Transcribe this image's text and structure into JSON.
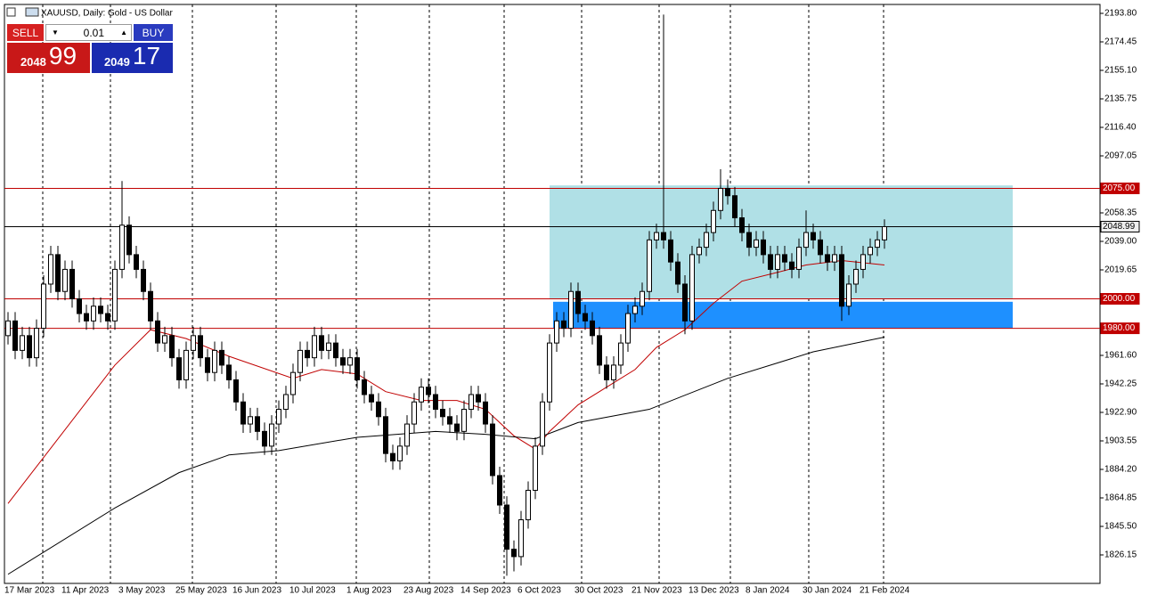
{
  "chart_data": {
    "type": "candlestick",
    "title": "XAUUSD, Daily: Gold - US Dollar",
    "trade_panel": {
      "sell": "SELL",
      "lot": "0.01",
      "buy": "BUY",
      "bid_big": "2048",
      "bid_small": "99",
      "ask_big": "2049",
      "ask_small": "17"
    },
    "categories": [
      "17 Mar 2023",
      null,
      null,
      null,
      null,
      null,
      null,
      null,
      "11 Apr 2023",
      null,
      null,
      null,
      null,
      null,
      null,
      null,
      "3 May 2023",
      null,
      null,
      null,
      null,
      null,
      null,
      null,
      "25 May 2023",
      null,
      null,
      null,
      null,
      null,
      null,
      null,
      "16 Jun 2023",
      null,
      null,
      null,
      null,
      null,
      null,
      null,
      "10 Jul 2023",
      null,
      null,
      null,
      null,
      null,
      null,
      null,
      "1 Aug 2023",
      null,
      null,
      null,
      null,
      null,
      null,
      null,
      "23 Aug 2023",
      null,
      null,
      null,
      null,
      null,
      null,
      null,
      "14 Sep 2023",
      null,
      null,
      null,
      null,
      null,
      null,
      null,
      "6 Oct 2023",
      null,
      null,
      null,
      null,
      null,
      null,
      null,
      "30 Oct 2023",
      null,
      null,
      null,
      null,
      null,
      null,
      null,
      "21 Nov 2023",
      null,
      null,
      null,
      null,
      null,
      null,
      null,
      "13 Dec 2023",
      null,
      null,
      null,
      null,
      null,
      null,
      null,
      "8 Jan 2024",
      null,
      null,
      null,
      null,
      null,
      null,
      null,
      "30 Jan 2024",
      null,
      null,
      null,
      null,
      null,
      null,
      null,
      "21 Feb 2024",
      null,
      null,
      null
    ],
    "open": [
      1975,
      1985,
      1965,
      1975,
      1960,
      1980,
      2010,
      2030,
      2005,
      2020,
      2000,
      1990,
      1985,
      1995,
      1990,
      1985,
      2020,
      2050,
      2030,
      2020,
      2005,
      1985,
      1970,
      1975,
      1960,
      1945,
      1965,
      1975,
      1960,
      1950,
      1965,
      1955,
      1945,
      1930,
      1915,
      1920,
      1910,
      1900,
      1915,
      1925,
      1935,
      1950,
      1965,
      1960,
      1975,
      1965,
      1970,
      1960,
      1955,
      1960,
      1945,
      1935,
      1930,
      1920,
      1895,
      1890,
      1900,
      1915,
      1930,
      1940,
      1935,
      1925,
      1920,
      1915,
      1910,
      1925,
      1935,
      1930,
      1915,
      1880,
      1860,
      1830,
      1825,
      1850,
      1870,
      1900,
      1930,
      1970,
      1985,
      1980,
      2005,
      1990,
      1985,
      1975,
      1955,
      1945,
      1955,
      1970,
      1990,
      1995,
      2005,
      2040,
      2045,
      2040,
      2025,
      2010,
      1985,
      2030,
      2035,
      2045,
      2060,
      2075,
      2070,
      2055,
      2045,
      2035,
      2040,
      2030,
      2020,
      2030,
      2025,
      2020,
      2035,
      2045,
      2040,
      2030,
      2025,
      2030,
      1995,
      2010,
      2020,
      2030,
      2035,
      2040
    ],
    "high": [
      1991,
      1991,
      1981,
      1981,
      1986,
      2016,
      2036,
      2036,
      2026,
      2026,
      2006,
      1996,
      2001,
      2001,
      1996,
      2026,
      2080,
      2056,
      2036,
      2026,
      2011,
      1991,
      1981,
      1981,
      1966,
      1971,
      1981,
      1981,
      1966,
      1971,
      1971,
      1961,
      1951,
      1936,
      1926,
      1926,
      1916,
      1921,
      1931,
      1941,
      1956,
      1971,
      1971,
      1981,
      1981,
      1976,
      1976,
      1966,
      1966,
      1966,
      1951,
      1941,
      1936,
      1926,
      1901,
      1906,
      1921,
      1936,
      1946,
      1946,
      1941,
      1931,
      1926,
      1921,
      1931,
      1941,
      1941,
      1936,
      1921,
      1886,
      1866,
      1836,
      1856,
      1876,
      1906,
      1936,
      1976,
      1991,
      1991,
      2011,
      2011,
      1996,
      1991,
      1981,
      1961,
      1961,
      1976,
      1996,
      2001,
      2011,
      2046,
      2051,
      2193,
      2046,
      2031,
      2016,
      2036,
      2041,
      2051,
      2066,
      2088,
      2081,
      2076,
      2061,
      2051,
      2046,
      2046,
      2036,
      2036,
      2036,
      2031,
      2041,
      2060,
      2051,
      2046,
      2036,
      2036,
      2036,
      2016,
      2026,
      2036,
      2041,
      2046,
      2054
    ],
    "low": [
      1969,
      1959,
      1959,
      1954,
      1954,
      1974,
      2004,
      1999,
      1999,
      1994,
      1984,
      1979,
      1979,
      1984,
      1979,
      1979,
      2014,
      2024,
      2014,
      1999,
      1979,
      1964,
      1964,
      1954,
      1939,
      1939,
      1959,
      1954,
      1944,
      1944,
      1949,
      1939,
      1924,
      1909,
      1909,
      1904,
      1894,
      1894,
      1909,
      1919,
      1929,
      1944,
      1954,
      1954,
      1959,
      1959,
      1954,
      1949,
      1949,
      1939,
      1929,
      1924,
      1914,
      1889,
      1884,
      1884,
      1894,
      1909,
      1924,
      1929,
      1919,
      1914,
      1909,
      1904,
      1904,
      1919,
      1924,
      1909,
      1874,
      1854,
      1812,
      1815,
      1819,
      1844,
      1864,
      1894,
      1924,
      1964,
      1974,
      1974,
      1984,
      1979,
      1969,
      1949,
      1939,
      1939,
      1949,
      1964,
      1984,
      1989,
      1999,
      2034,
      2034,
      2019,
      2004,
      1976,
      1979,
      2024,
      2029,
      2039,
      2054,
      2064,
      2049,
      2039,
      2029,
      2029,
      2024,
      2014,
      2014,
      2019,
      2014,
      2014,
      2029,
      2034,
      2024,
      2019,
      2019,
      1985,
      1989,
      2004,
      2014,
      2024,
      2029,
      2034
    ],
    "close": [
      1985,
      1965,
      1975,
      1960,
      1980,
      2010,
      2030,
      2005,
      2020,
      2000,
      1990,
      1985,
      1995,
      1990,
      1985,
      2020,
      2050,
      2030,
      2020,
      2005,
      1985,
      1970,
      1975,
      1960,
      1945,
      1965,
      1975,
      1960,
      1950,
      1965,
      1955,
      1945,
      1930,
      1915,
      1920,
      1910,
      1900,
      1915,
      1925,
      1935,
      1950,
      1965,
      1960,
      1975,
      1965,
      1970,
      1960,
      1955,
      1960,
      1945,
      1935,
      1930,
      1920,
      1895,
      1890,
      1900,
      1915,
      1930,
      1940,
      1935,
      1925,
      1920,
      1915,
      1910,
      1925,
      1935,
      1930,
      1915,
      1880,
      1860,
      1830,
      1825,
      1850,
      1870,
      1900,
      1930,
      1970,
      1985,
      1980,
      2005,
      1990,
      1985,
      1975,
      1955,
      1945,
      1955,
      1970,
      1990,
      1995,
      2005,
      2040,
      2045,
      2040,
      2025,
      2010,
      1985,
      2030,
      2035,
      2045,
      2060,
      2075,
      2070,
      2055,
      2045,
      2035,
      2040,
      2030,
      2020,
      2030,
      2025,
      2020,
      2035,
      2045,
      2040,
      2030,
      2025,
      2030,
      1995,
      2010,
      2020,
      2030,
      2035,
      2040,
      2048.99
    ],
    "overlays": [
      {
        "color": "#c00000",
        "x": [
          0,
          15,
          20,
          25,
          31,
          40,
          44,
          49,
          53,
          58,
          63,
          67,
          71,
          74,
          76,
          80,
          84,
          88,
          91,
          95,
          99,
          103,
          108,
          112,
          117,
          123
        ],
        "values": [
          1861,
          1955,
          1979,
          1973,
          1961,
          1946,
          1952,
          1949,
          1937,
          1931,
          1931,
          1925,
          1907,
          1898,
          1910,
          1928,
          1940,
          1952,
          1967,
          1979,
          1997,
          2012,
          2018,
          2023,
          2026,
          2023
        ]
      },
      {
        "color": "#000000",
        "x": [
          0,
          15,
          24,
          31,
          38,
          49,
          60,
          67,
          74,
          80,
          90,
          101,
          113,
          123
        ],
        "values": [
          1813,
          1858,
          1882,
          1894,
          1897,
          1906,
          1910,
          1908,
          1905,
          1916,
          1925,
          1946,
          1964,
          1974
        ]
      }
    ],
    "zones": [
      {
        "from": 2000,
        "to": 2077,
        "x": [
          76,
          141
        ],
        "color": "#b0e0e6"
      },
      {
        "from": 1980,
        "to": 1998,
        "x": [
          76.5,
          141
        ],
        "color": "#1e90ff"
      }
    ],
    "levels": [
      {
        "value": 2075,
        "label": "2075.00",
        "color": "#c00000"
      },
      {
        "value": 2000,
        "label": "2000.00",
        "color": "#c00000"
      },
      {
        "value": 1980,
        "label": "1980.00",
        "color": "#c00000"
      }
    ],
    "current": {
      "value": 2048.99,
      "label": "2048.99",
      "color": "#000000"
    },
    "xlim": [
      -0.5,
      153.25
    ],
    "ylim": [
      1806.8,
      2199.85
    ],
    "yticks": [
      {
        "value": 2193.8,
        "label": "2193.80"
      },
      {
        "value": 2174.45,
        "label": "2174.45"
      },
      {
        "value": 2155.1,
        "label": "2155.10"
      },
      {
        "value": 2135.75,
        "label": "2135.75"
      },
      {
        "value": 2116.4,
        "label": "2116.40"
      },
      {
        "value": 2097.05,
        "label": "2097.05"
      },
      {
        "value": 2058.35,
        "label": "2058.35"
      },
      {
        "value": 2039,
        "label": "2039.00"
      },
      {
        "value": 2019.65,
        "label": "2019.65"
      },
      {
        "value": 1961.6,
        "label": "1961.60"
      },
      {
        "value": 1942.25,
        "label": "1942.25"
      },
      {
        "value": 1922.9,
        "label": "1922.90"
      },
      {
        "value": 1903.55,
        "label": "1903.55"
      },
      {
        "value": 1884.2,
        "label": "1884.20"
      },
      {
        "value": 1864.85,
        "label": "1864.85"
      },
      {
        "value": 1845.5,
        "label": "1845.50"
      },
      {
        "value": 1826.15,
        "label": "1826.15"
      }
    ]
  }
}
